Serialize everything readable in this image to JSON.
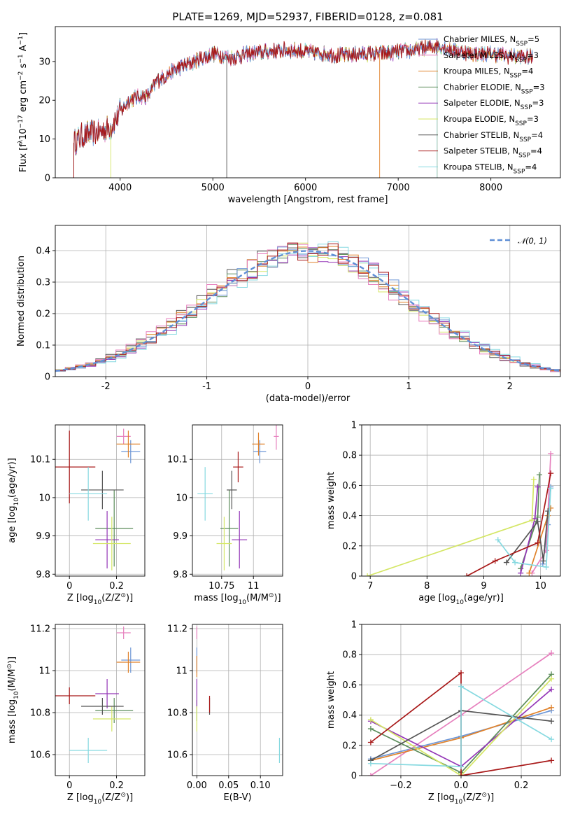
{
  "page": {
    "title": "PLATE=1269, MJD=52937, FIBERID=0128, z=0.081"
  },
  "models": [
    {
      "name": "Chabrier MILES, N_SSP=5",
      "display": [
        "Chabrier MILES, N",
        "SSP",
        "=5"
      ],
      "color": "#6d96d6"
    },
    {
      "name": "Salpeter MILES, N_SSP=3",
      "display": [
        "Salpeter MILES, N",
        "SSP",
        "=3"
      ],
      "color": "#e67fbd"
    },
    {
      "name": "Kroupa MILES, N_SSP=4",
      "display": [
        "Kroupa MILES, N",
        "SSP",
        "=4"
      ],
      "color": "#e0822b"
    },
    {
      "name": "Chabrier ELODIE, N_SSP=3",
      "display": [
        "Chabrier ELODIE, N",
        "SSP",
        "=3"
      ],
      "color": "#5b8c5a"
    },
    {
      "name": "Salpeter ELODIE, N_SSP=3",
      "display": [
        "Salpeter ELODIE, N",
        "SSP",
        "=3"
      ],
      "color": "#9436b7"
    },
    {
      "name": "Kroupa ELODIE, N_SSP=3",
      "display": [
        "Kroupa ELODIE, N",
        "SSP",
        "=3"
      ],
      "color": "#d4e665"
    },
    {
      "name": "Chabrier STELIB, N_SSP=4",
      "display": [
        "Chabrier STELIB, N",
        "SSP",
        "=4"
      ],
      "color": "#555555"
    },
    {
      "name": "Salpeter STELIB, N_SSP=4",
      "display": [
        "Salpeter STELIB, N",
        "SSP",
        "=4"
      ],
      "color": "#a81818"
    },
    {
      "name": "Kroupa STELIB, N_SSP=4",
      "display": [
        "Kroupa STELIB, N",
        "SSP",
        "=4"
      ],
      "color": "#86d9e0"
    }
  ],
  "chart_data": [
    {
      "id": "spectrum",
      "type": "line",
      "title": "PLATE=1269, MJD=52937, FIBERID=0128, z=0.081",
      "xlabel": "wavelength [Angstrom, rest frame]",
      "ylabel_parts": [
        "Flux [f",
        "λ",
        "10",
        "−17",
        " erg cm",
        "−2",
        " s",
        "−1",
        " A",
        "−1",
        "]"
      ],
      "xlim": [
        3300,
        8750
      ],
      "ylim": [
        0,
        39
      ],
      "xticks": [
        4000,
        5000,
        6000,
        7000,
        8000
      ],
      "yticks": [
        0,
        10,
        20,
        30
      ],
      "continuum": [
        [
          3500,
          9
        ],
        [
          3600,
          11
        ],
        [
          3700,
          11.5
        ],
        [
          3800,
          12
        ],
        [
          3900,
          13
        ],
        [
          4000,
          17
        ],
        [
          4100,
          20
        ],
        [
          4200,
          21
        ],
        [
          4300,
          21
        ],
        [
          4400,
          25
        ],
        [
          4600,
          28
        ],
        [
          4800,
          30
        ],
        [
          5000,
          32
        ],
        [
          5200,
          31
        ],
        [
          5400,
          32
        ],
        [
          5600,
          32.5
        ],
        [
          5800,
          33
        ],
        [
          6000,
          32.5
        ],
        [
          6200,
          32
        ],
        [
          6400,
          31.5
        ],
        [
          6600,
          32
        ],
        [
          6800,
          32
        ],
        [
          7000,
          32.5
        ],
        [
          7200,
          33
        ],
        [
          7400,
          34
        ],
        [
          7600,
          33
        ],
        [
          7800,
          32
        ],
        [
          8000,
          32
        ],
        [
          8200,
          31.5
        ],
        [
          8450,
          31
        ]
      ],
      "drops": [
        [
          3500,
          0
        ],
        [
          3900,
          0
        ],
        [
          5150,
          0
        ],
        [
          6800,
          0
        ],
        [
          7420,
          0
        ]
      ],
      "grid": false,
      "legend": "upper right"
    },
    {
      "id": "residuals",
      "type": "histogram",
      "xlabel": "(data-model)/error",
      "ylabel": "Normed distribution",
      "xlim": [
        -2.5,
        2.5
      ],
      "ylim": [
        0,
        0.48
      ],
      "xticks": [
        -2,
        -1,
        0,
        1,
        2
      ],
      "yticks": [
        0,
        0.1,
        0.2,
        0.3,
        0.4
      ],
      "bin_width": 0.1,
      "reference_curve": "N(0,1)",
      "legend_entry": [
        "𝒩(0, 1)"
      ],
      "grid": true,
      "legend": "upper right"
    },
    {
      "id": "age-vs-metallicity",
      "type": "errorbar",
      "xlabel_parts": [
        "Z [log",
        "10",
        "(Z/Z",
        "⊙",
        ")]"
      ],
      "ylabel_parts": [
        "age  [log",
        "10",
        "(age/yr)]"
      ],
      "xlim": [
        -0.06,
        0.32
      ],
      "ylim": [
        9.795,
        10.19
      ],
      "xticks": [
        0.0,
        0.2
      ],
      "yticks": [
        9.8,
        9.9,
        10.0,
        10.1
      ],
      "points": [
        {
          "model": 0,
          "x": 0.26,
          "xerr": 0.04,
          "y": 10.12,
          "yerr": 0.03
        },
        {
          "model": 1,
          "x": 0.23,
          "xerr": 0.03,
          "y": 10.16,
          "yerr": 0.02
        },
        {
          "model": 2,
          "x": 0.25,
          "xerr": 0.05,
          "y": 10.14,
          "yerr": 0.035
        },
        {
          "model": 3,
          "x": 0.19,
          "xerr": 0.08,
          "y": 9.92,
          "yerr": 0.1
        },
        {
          "model": 4,
          "x": 0.16,
          "xerr": 0.05,
          "y": 9.89,
          "yerr": 0.075
        },
        {
          "model": 5,
          "x": 0.18,
          "xerr": 0.08,
          "y": 9.88,
          "yerr": 0.07
        },
        {
          "model": 6,
          "x": 0.14,
          "xerr": 0.09,
          "y": 10.02,
          "yerr": 0.05
        },
        {
          "model": 7,
          "x": 0.0,
          "xerr": 0.11,
          "y": 10.08,
          "yerr": 0.095
        },
        {
          "model": 8,
          "x": 0.08,
          "xerr": 0.08,
          "y": 10.01,
          "yerr": 0.07
        }
      ],
      "grid": true
    },
    {
      "id": "age-vs-mass",
      "type": "errorbar",
      "xlabel_parts": [
        "mass [log",
        "10",
        "(M/M",
        "⊙",
        ")]"
      ],
      "xlim": [
        10.52,
        11.23
      ],
      "ylim": [
        9.795,
        10.19
      ],
      "xticks": [
        10.75,
        11.0
      ],
      "yticks": [
        9.8,
        9.9,
        10.0,
        10.1
      ],
      "points": [
        {
          "model": 0,
          "x": 11.05,
          "xerr": 0.05,
          "y": 10.12,
          "yerr": 0.03
        },
        {
          "model": 1,
          "x": 11.18,
          "xerr": 0.02,
          "y": 10.16,
          "yerr": 0.035
        },
        {
          "model": 2,
          "x": 11.04,
          "xerr": 0.05,
          "y": 10.14,
          "yerr": 0.03
        },
        {
          "model": 3,
          "x": 10.81,
          "xerr": 0.07,
          "y": 9.92,
          "yerr": 0.1
        },
        {
          "model": 4,
          "x": 10.89,
          "xerr": 0.06,
          "y": 9.89,
          "yerr": 0.075
        },
        {
          "model": 5,
          "x": 10.77,
          "xerr": 0.06,
          "y": 9.88,
          "yerr": 0.07
        },
        {
          "model": 6,
          "x": 10.83,
          "xerr": 0.04,
          "y": 10.02,
          "yerr": 0.05
        },
        {
          "model": 7,
          "x": 10.88,
          "xerr": 0.04,
          "y": 10.08,
          "yerr": 0.04
        },
        {
          "model": 8,
          "x": 10.62,
          "xerr": 0.06,
          "y": 10.01,
          "yerr": 0.07
        }
      ],
      "grid": true
    },
    {
      "id": "weight-vs-age",
      "type": "line",
      "xlabel_parts": [
        "age  [log",
        "10",
        "(age/yr)]"
      ],
      "ylabel": "mass weight",
      "xlim": [
        6.85,
        10.35
      ],
      "ylim": [
        0,
        1.0
      ],
      "xticks": [
        7,
        8,
        9,
        10
      ],
      "yticks": [
        0.0,
        0.2,
        0.4,
        0.6,
        0.8,
        1.0
      ],
      "series": [
        {
          "model": 0,
          "x": [
            10.04,
            10.13,
            10.18
          ],
          "y": [
            0.08,
            0.34,
            0.59
          ]
        },
        {
          "model": 1,
          "x": [
            9.85,
            10.1,
            10.18
          ],
          "y": [
            0.02,
            0.17,
            0.81
          ]
        },
        {
          "model": 2,
          "x": [
            9.8,
            10.13,
            10.18
          ],
          "y": [
            0.02,
            0.4,
            0.45
          ]
        },
        {
          "model": 3,
          "x": [
            9.65,
            9.95,
            9.98
          ],
          "y": [
            0.05,
            0.39,
            0.67
          ]
        },
        {
          "model": 4,
          "x": [
            9.65,
            9.9,
            9.95
          ],
          "y": [
            0.02,
            0.38,
            0.59
          ]
        },
        {
          "model": 5,
          "x": [
            6.95,
            9.85,
            9.88
          ],
          "y": [
            0.0,
            0.37,
            0.64
          ]
        },
        {
          "model": 6,
          "x": [
            9.4,
            9.95,
            10.05,
            10.13
          ],
          "y": [
            0.09,
            0.36,
            0.1,
            0.43
          ]
        },
        {
          "model": 7,
          "x": [
            8.7,
            9.2,
            9.95,
            10.18
          ],
          "y": [
            0.0,
            0.1,
            0.22,
            0.68
          ]
        },
        {
          "model": 8,
          "x": [
            9.25,
            9.55,
            10.1,
            10.18
          ],
          "y": [
            0.24,
            0.09,
            0.06,
            0.58
          ]
        }
      ],
      "grid": true
    },
    {
      "id": "mass-vs-metallicity",
      "type": "errorbar",
      "xlabel_parts": [
        "Z [log",
        "10",
        "(Z/Z",
        "⊙",
        ")]"
      ],
      "ylabel_parts": [
        "mass [log",
        "10",
        "(M/M",
        "⊙",
        ")]"
      ],
      "xlim": [
        -0.06,
        0.32
      ],
      "ylim": [
        10.5,
        11.22
      ],
      "xticks": [
        0.0,
        0.2
      ],
      "yticks": [
        10.6,
        10.8,
        11.0,
        11.2
      ],
      "points": [
        {
          "model": 0,
          "x": 0.26,
          "xerr": 0.04,
          "y": 11.05,
          "yerr": 0.06
        },
        {
          "model": 1,
          "x": 0.23,
          "xerr": 0.03,
          "y": 11.18,
          "yerr": 0.03
        },
        {
          "model": 2,
          "x": 0.25,
          "xerr": 0.05,
          "y": 11.04,
          "yerr": 0.05
        },
        {
          "model": 3,
          "x": 0.19,
          "xerr": 0.08,
          "y": 10.81,
          "yerr": 0.06
        },
        {
          "model": 4,
          "x": 0.16,
          "xerr": 0.05,
          "y": 10.89,
          "yerr": 0.07
        },
        {
          "model": 5,
          "x": 0.18,
          "xerr": 0.08,
          "y": 10.77,
          "yerr": 0.06
        },
        {
          "model": 6,
          "x": 0.14,
          "xerr": 0.09,
          "y": 10.83,
          "yerr": 0.04
        },
        {
          "model": 7,
          "x": 0.0,
          "xerr": 0.11,
          "y": 10.88,
          "yerr": 0.04
        },
        {
          "model": 8,
          "x": 0.08,
          "xerr": 0.08,
          "y": 10.62,
          "yerr": 0.06
        }
      ],
      "grid": true
    },
    {
      "id": "mass-vs-ebv",
      "type": "errorbar",
      "xlabel": "E(B-V)",
      "xlim": [
        -0.007,
        0.135
      ],
      "ylim": [
        10.5,
        11.22
      ],
      "xticks": [
        0.0,
        0.05,
        0.1
      ],
      "xtick_labels": [
        "0.00",
        "0.05",
        "0.10"
      ],
      "yticks": [
        10.6,
        10.8,
        11.0,
        11.2
      ],
      "points": [
        {
          "model": 0,
          "x": 0.0,
          "xerr": 0.0,
          "y": 11.05,
          "yerr": 0.06
        },
        {
          "model": 1,
          "x": 0.0,
          "xerr": 0.0,
          "y": 11.18,
          "yerr": 0.03
        },
        {
          "model": 2,
          "x": 0.0,
          "xerr": 0.0,
          "y": 11.02,
          "yerr": 0.05
        },
        {
          "model": 3,
          "x": 0.0,
          "xerr": 0.0,
          "y": 10.81,
          "yerr": 0.05
        },
        {
          "model": 4,
          "x": 0.0,
          "xerr": 0.0,
          "y": 10.89,
          "yerr": 0.07
        },
        {
          "model": 5,
          "x": 0.0,
          "xerr": 0.0,
          "y": 10.77,
          "yerr": 0.06
        },
        {
          "model": 6,
          "x": 0.02,
          "xerr": 0.0,
          "y": 10.83,
          "yerr": 0.04
        },
        {
          "model": 7,
          "x": 0.02,
          "xerr": 0.0,
          "y": 10.84,
          "yerr": 0.04
        },
        {
          "model": 8,
          "x": 0.13,
          "xerr": 0.0,
          "y": 10.62,
          "yerr": 0.06
        }
      ],
      "grid": true
    },
    {
      "id": "weight-vs-metallicity",
      "type": "line",
      "xlabel_parts": [
        "Z [log",
        "10",
        "(Z/Z",
        "⊙",
        ")]"
      ],
      "ylabel": "mass weight",
      "xlim": [
        -0.33,
        0.33
      ],
      "ylim": [
        0,
        1.0
      ],
      "xticks": [
        -0.2,
        0.0,
        0.2
      ],
      "xtick_labels": [
        "−0.2",
        "0.0",
        "0.2"
      ],
      "yticks": [
        0.0,
        0.2,
        0.4,
        0.6,
        0.8,
        1.0
      ],
      "series": [
        {
          "model": 0,
          "x": [
            -0.3,
            0.0,
            0.3
          ],
          "y": [
            0.11,
            0.26,
            0.43
          ]
        },
        {
          "model": 1,
          "x": [
            -0.3,
            0.0,
            0.3
          ],
          "y": [
            0.0,
            0.4,
            0.81
          ]
        },
        {
          "model": 2,
          "x": [
            -0.3,
            0.0,
            0.3
          ],
          "y": [
            0.1,
            0.25,
            0.45
          ]
        },
        {
          "model": 3,
          "x": [
            -0.3,
            0.0,
            0.3
          ],
          "y": [
            0.31,
            0.02,
            0.67
          ]
        },
        {
          "model": 4,
          "x": [
            -0.3,
            0.0,
            0.3
          ],
          "y": [
            0.36,
            0.06,
            0.57
          ]
        },
        {
          "model": 5,
          "x": [
            -0.3,
            0.0,
            0.3
          ],
          "y": [
            0.37,
            0.0,
            0.64
          ]
        },
        {
          "model": 6,
          "x": [
            -0.3,
            0.0,
            0.3
          ],
          "y": [
            0.1,
            0.43,
            0.36
          ]
        },
        {
          "model": 7,
          "x": [
            -0.3,
            0.0,
            0.0,
            0.3
          ],
          "y": [
            0.22,
            0.68,
            0.0,
            0.1
          ]
        },
        {
          "model": 8,
          "x": [
            -0.3,
            0.0,
            0.0,
            0.3
          ],
          "y": [
            0.08,
            0.06,
            0.59,
            0.24
          ]
        }
      ],
      "grid": true
    }
  ]
}
